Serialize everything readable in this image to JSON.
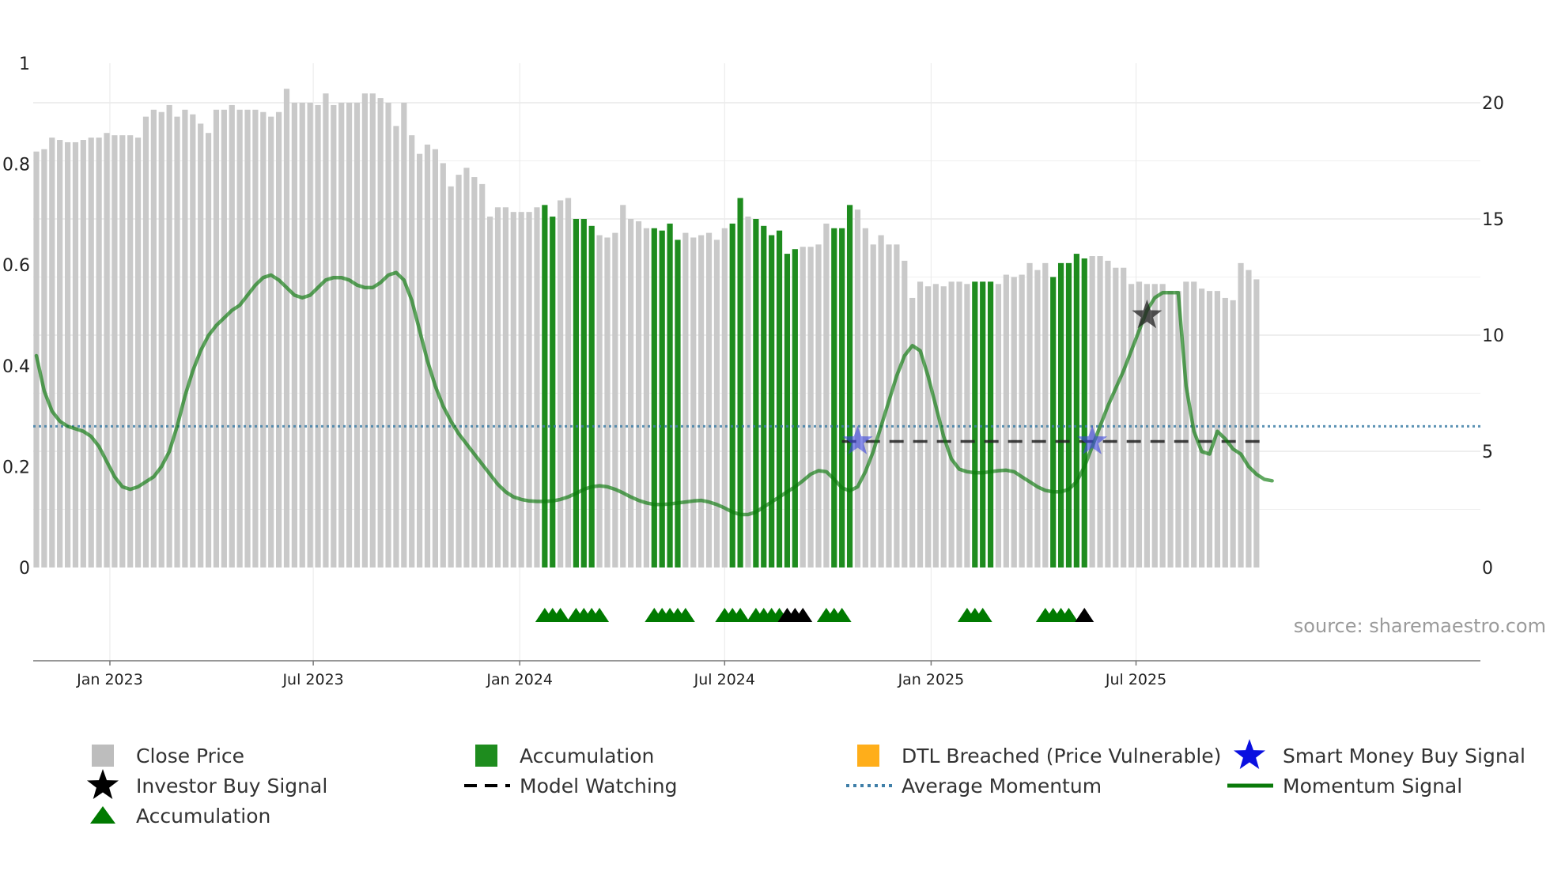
{
  "chart_data": {
    "type": "bar",
    "title": "",
    "source": "source: sharemaestro.com",
    "left_axis": {
      "ticks": [
        "0",
        "0.2",
        "0.4",
        "0.6",
        "0.8",
        "1"
      ],
      "tick_values": [
        0,
        0.2,
        0.4,
        0.6,
        0.8,
        1
      ],
      "ylim": [
        0,
        1
      ]
    },
    "right_axis": {
      "ticks": [
        "0",
        "5",
        "10",
        "15",
        "20"
      ],
      "tick_values": [
        0,
        5,
        10,
        15,
        20
      ],
      "ylim": [
        0,
        21.7
      ]
    },
    "x_ticks": [
      "Jan 2023",
      "Jul 2023",
      "Jan 2024",
      "Jul 2024",
      "Jan 2025",
      "Jul 2025"
    ],
    "x_tick_weeks": [
      9.4,
      35.4,
      61.8,
      88.0,
      114.4,
      140.6
    ],
    "close_price": [
      17.9,
      18.0,
      18.5,
      18.4,
      18.3,
      18.3,
      18.4,
      18.5,
      18.5,
      18.7,
      18.6,
      18.6,
      18.6,
      18.5,
      19.4,
      19.7,
      19.6,
      19.9,
      19.4,
      19.7,
      19.5,
      19.1,
      18.7,
      19.7,
      19.7,
      19.9,
      19.7,
      19.7,
      19.7,
      19.6,
      19.4,
      19.6,
      20.6,
      20.0,
      20.0,
      20.0,
      19.9,
      20.4,
      19.9,
      20.0,
      20.0,
      20.0,
      20.4,
      20.4,
      20.2,
      20.0,
      19.0,
      20.0,
      18.6,
      17.8,
      18.2,
      18.0,
      17.4,
      16.4,
      16.9,
      17.2,
      16.8,
      16.5,
      15.1,
      15.5,
      15.5,
      15.3,
      15.3,
      15.3,
      15.5,
      15.6,
      15.1,
      15.8,
      15.9,
      15.0,
      15.0,
      14.7,
      14.3,
      14.2,
      14.4,
      15.6,
      15.0,
      14.9,
      14.6,
      14.6,
      14.5,
      14.8,
      14.1,
      14.4,
      14.2,
      14.3,
      14.4,
      14.1,
      14.6,
      14.8,
      15.9,
      15.1,
      15.0,
      14.7,
      14.3,
      14.5,
      13.5,
      13.7,
      13.8,
      13.8,
      13.9,
      14.8,
      14.6,
      14.6,
      15.6,
      15.4,
      14.6,
      13.9,
      14.3,
      13.9,
      13.9,
      13.2,
      11.6,
      12.3,
      12.1,
      12.2,
      12.1,
      12.3,
      12.3,
      12.2,
      12.3,
      12.3,
      12.3,
      12.2,
      12.6,
      12.5,
      12.6,
      13.1,
      12.8,
      13.1,
      12.5,
      13.1,
      13.1,
      13.5,
      13.3,
      13.4,
      13.4,
      13.2,
      12.9,
      12.9,
      12.2,
      12.3,
      12.2,
      12.2,
      12.2,
      11.9,
      11.9,
      12.3,
      12.3,
      12.0,
      11.9,
      11.9,
      11.6,
      11.5,
      13.1,
      12.8,
      12.4
    ],
    "accumulation_weeks": [
      65,
      66,
      69,
      70,
      71,
      79,
      80,
      81,
      82,
      89,
      90,
      92,
      93,
      94,
      95,
      96,
      97,
      102,
      103,
      104,
      120,
      121,
      122,
      130,
      131,
      132,
      133,
      134
    ],
    "momentum_signal": [
      0.42,
      0.35,
      0.31,
      0.29,
      0.28,
      0.275,
      0.27,
      0.26,
      0.24,
      0.21,
      0.18,
      0.16,
      0.155,
      0.16,
      0.17,
      0.18,
      0.2,
      0.23,
      0.28,
      0.34,
      0.39,
      0.43,
      0.46,
      0.48,
      0.495,
      0.51,
      0.52,
      0.54,
      0.56,
      0.575,
      0.58,
      0.57,
      0.555,
      0.54,
      0.535,
      0.54,
      0.555,
      0.57,
      0.575,
      0.575,
      0.57,
      0.56,
      0.555,
      0.555,
      0.565,
      0.58,
      0.585,
      0.57,
      0.53,
      0.47,
      0.41,
      0.36,
      0.32,
      0.29,
      0.265,
      0.245,
      0.225,
      0.205,
      0.185,
      0.165,
      0.15,
      0.14,
      0.135,
      0.132,
      0.131,
      0.131,
      0.132,
      0.135,
      0.14,
      0.147,
      0.155,
      0.16,
      0.162,
      0.16,
      0.155,
      0.148,
      0.14,
      0.133,
      0.128,
      0.125,
      0.125,
      0.126,
      0.128,
      0.13,
      0.132,
      0.133,
      0.13,
      0.125,
      0.118,
      0.11,
      0.105,
      0.105,
      0.11,
      0.12,
      0.13,
      0.14,
      0.15,
      0.16,
      0.172,
      0.185,
      0.192,
      0.19,
      0.175,
      0.158,
      0.152,
      0.16,
      0.19,
      0.23,
      0.28,
      0.33,
      0.38,
      0.42,
      0.44,
      0.43,
      0.38,
      0.32,
      0.26,
      0.215,
      0.195,
      0.19,
      0.188,
      0.188,
      0.19,
      0.192,
      0.193,
      0.19,
      0.18,
      0.17,
      0.16,
      0.153,
      0.15,
      0.15,
      0.155,
      0.17,
      0.2,
      0.24,
      0.28,
      0.32,
      0.355,
      0.39,
      0.43,
      0.47,
      0.51,
      0.535,
      0.545,
      0.545,
      0.545,
      0.36,
      0.27,
      0.23,
      0.225,
      0.27,
      0.255,
      0.235,
      0.225,
      0.2,
      0.185,
      0.175,
      0.172
    ],
    "average_momentum": 0.28,
    "model_watching": {
      "start_week": 103,
      "end_week": 157.5,
      "value": 0.25
    },
    "smart_money_buy_signal": [
      {
        "week": 105,
        "value": 0.25
      },
      {
        "week": 135,
        "value": 0.25
      }
    ],
    "investor_buy_signal": [
      {
        "week": 142,
        "value": 0.5
      }
    ],
    "accumulation_triangles": [
      65,
      66,
      67,
      69,
      70,
      71,
      72,
      79,
      80,
      81,
      82,
      83,
      88,
      89,
      90,
      92,
      93,
      94,
      95,
      101,
      102,
      103,
      119,
      120,
      121,
      129,
      130,
      131,
      132
    ],
    "investor_triangles": [
      96,
      97,
      98,
      134
    ],
    "legend": [
      {
        "label": "Close Price",
        "marker": "gray-square",
        "color": "#bdbdbd"
      },
      {
        "label": "Investor Buy Signal",
        "marker": "star",
        "color": "#000000"
      },
      {
        "label": "Accumulation",
        "marker": "triangle",
        "color": "#007a00"
      },
      {
        "label": "Accumulation",
        "marker": "green-square",
        "color": "#1e8c1e"
      },
      {
        "label": "Model Watching",
        "marker": "dash",
        "color": "#000000"
      },
      {
        "label": "DTL Breached (Price Vulnerable)",
        "marker": "orange-square",
        "color": "#ffae1a"
      },
      {
        "label": "Average Momentum",
        "marker": "dotted",
        "color": "#3f7fa8"
      },
      {
        "label": "Smart Money Buy Signal",
        "marker": "star",
        "color": "#0a10e0"
      },
      {
        "label": "Momentum Signal",
        "marker": "line",
        "color": "#0a7a0a"
      }
    ]
  }
}
